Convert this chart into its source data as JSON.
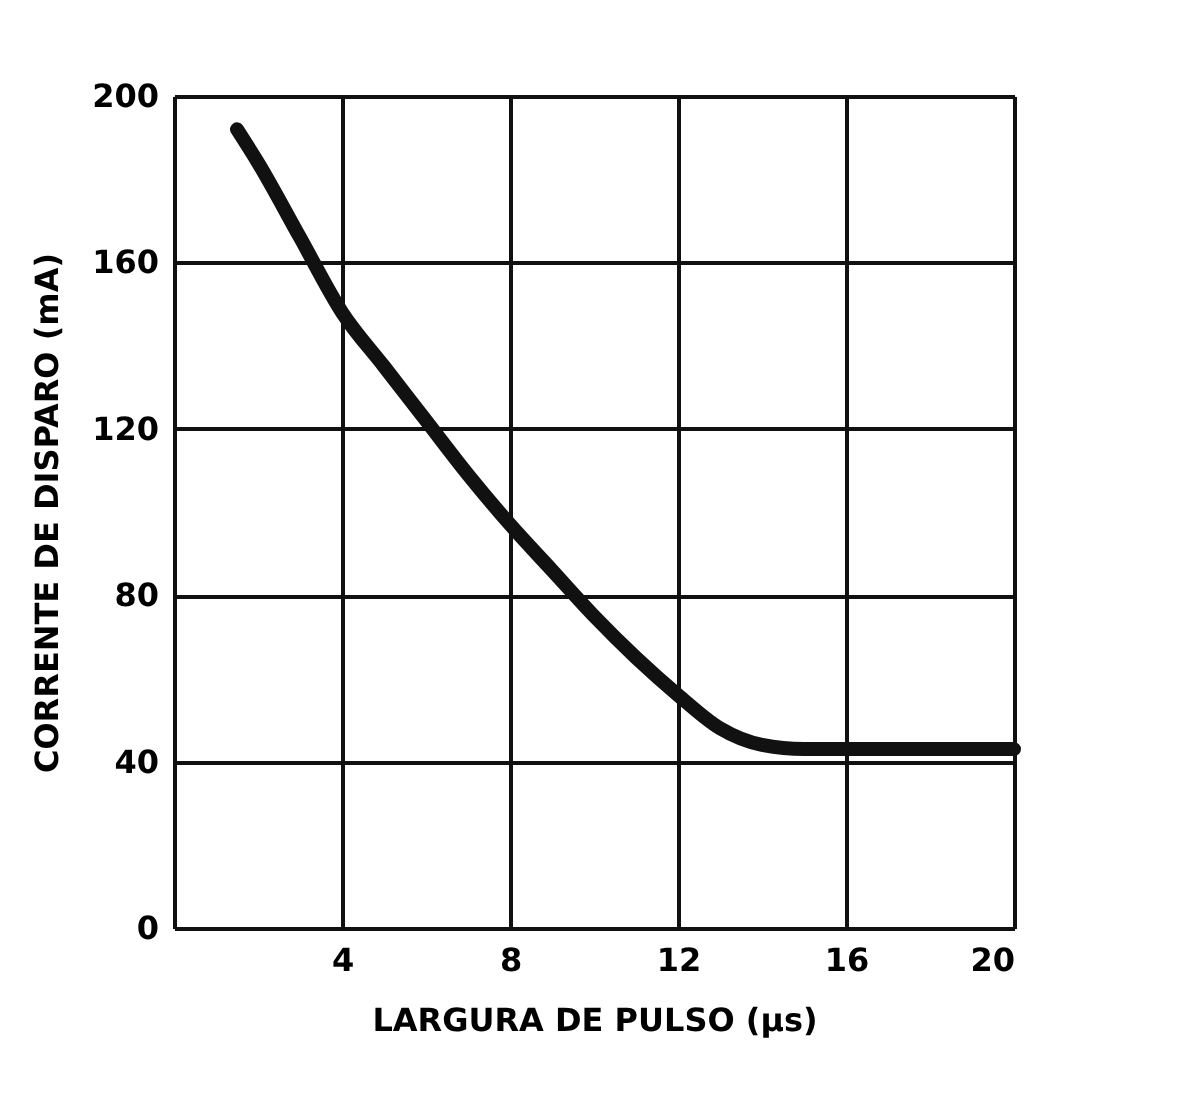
{
  "chart_data": {
    "type": "line",
    "xlabel": "LARGURA DE PULSO (µs)",
    "ylabel": "CORRENTE DE DISPARO (mA)",
    "x": [
      1.5,
      2,
      3,
      4,
      5,
      6,
      7,
      8,
      9,
      10,
      11,
      12,
      13,
      14,
      15,
      16,
      18,
      20
    ],
    "series": [
      {
        "color": "#111111",
        "values": [
          192,
          184,
          166,
          148,
          135,
          122,
          109,
          97,
          86,
          75,
          65,
          56,
          48,
          44,
          43,
          43,
          43,
          43
        ]
      }
    ],
    "xlim": [
      0,
      20
    ],
    "xticks": [
      {
        "value": 0,
        "label": null
      },
      4,
      8,
      12,
      16,
      20
    ],
    "ylim": [
      0,
      200
    ],
    "yticks": [
      0,
      40,
      80,
      120,
      160,
      200
    ],
    "grid": true,
    "line_style": "solid"
  }
}
